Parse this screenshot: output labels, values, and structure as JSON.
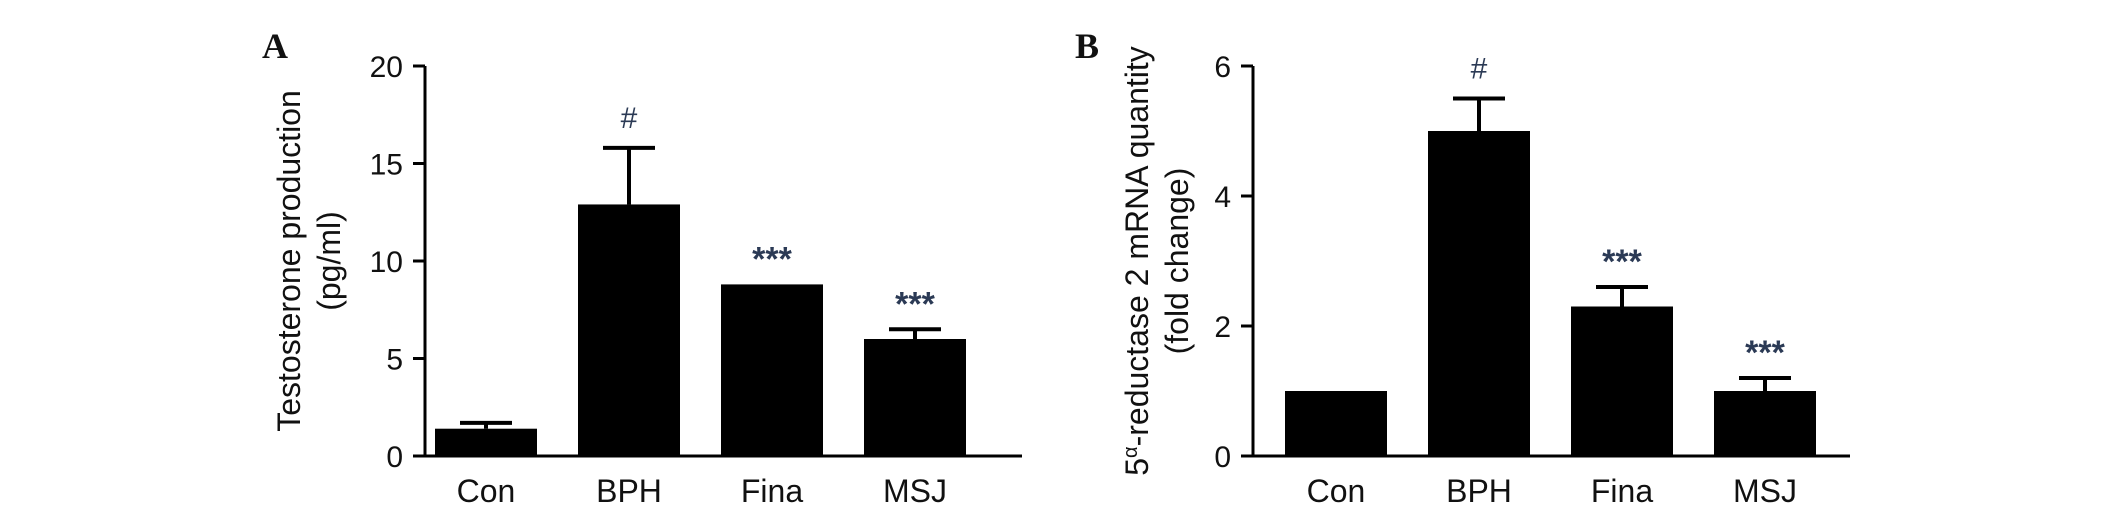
{
  "colors": {
    "bar": "#000000",
    "axis": "#000000",
    "annotation": "#2b3a55"
  },
  "chart_data": [
    {
      "type": "bar",
      "panel": "A",
      "categories": [
        "Con",
        "BPH",
        "Fina",
        "MSJ"
      ],
      "values": [
        1.4,
        12.9,
        8.8,
        6.0
      ],
      "error": [
        0.3,
        2.9,
        0.0,
        0.5
      ],
      "annotations": [
        "",
        "#",
        "***",
        "***"
      ],
      "ylabel_line1": "Testosterone production",
      "ylabel_line2": "(pg/ml)",
      "xlabel": "",
      "ylim": [
        0,
        20
      ],
      "yticks": [
        0,
        5,
        10,
        15,
        20
      ],
      "grid": false
    },
    {
      "type": "bar",
      "panel": "B",
      "categories": [
        "Con",
        "BPH",
        "Fina",
        "MSJ"
      ],
      "values": [
        1.0,
        5.0,
        2.3,
        1.0
      ],
      "error": [
        0.0,
        0.5,
        0.3,
        0.2
      ],
      "annotations": [
        "",
        "#",
        "***",
        "***"
      ],
      "ylabel_prefix": "5",
      "ylabel_superscript": "α",
      "ylabel_line1": "-reductase 2 mRNA quantity",
      "ylabel_line2": "(fold change)",
      "xlabel": "",
      "ylim": [
        0,
        6
      ],
      "yticks": [
        0,
        2,
        4,
        6
      ],
      "grid": false
    }
  ]
}
